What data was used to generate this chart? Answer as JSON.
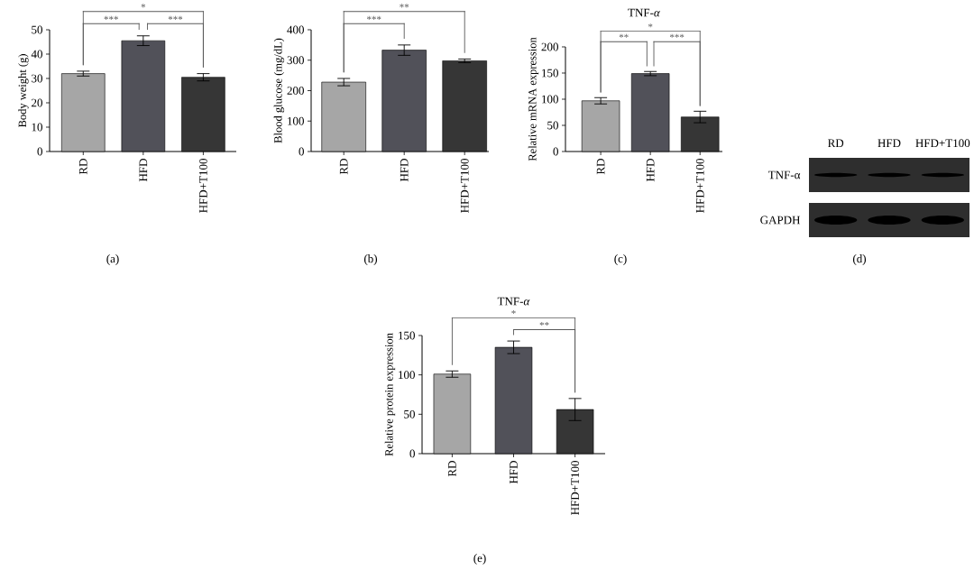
{
  "chart_data": [
    {
      "type": "bar",
      "ylabel": "Body weight (g)",
      "categories": [
        "RD",
        "HFD",
        "HFD+T100"
      ],
      "values": [
        32,
        45.5,
        30.5
      ],
      "errors": [
        1,
        2,
        1.5
      ],
      "colors": [
        "#a6a6a6",
        "#515159",
        "#363636"
      ],
      "ylim": [
        0,
        50
      ],
      "yticks": [
        0,
        10,
        20,
        30,
        40,
        50
      ],
      "annotations": [
        "***",
        "***",
        "*",
        "(a)"
      ]
    },
    {
      "type": "bar",
      "ylabel": "Blood glucose (mg/dL)",
      "categories": [
        "RD",
        "HFD",
        "HFD+T100"
      ],
      "values": [
        228,
        333,
        298
      ],
      "errors": [
        12,
        17,
        6
      ],
      "colors": [
        "#a6a6a6",
        "#515159",
        "#363636"
      ],
      "ylim": [
        0,
        400
      ],
      "yticks": [
        0,
        100,
        200,
        300,
        400
      ],
      "annotations": [
        "***",
        "**",
        "(b)"
      ]
    },
    {
      "type": "bar",
      "title": "TNF-*α*",
      "ylabel": "Relative mRNA expression",
      "categories": [
        "RD",
        "HFD",
        "HFD+T100"
      ],
      "values": [
        97,
        149,
        66
      ],
      "errors": [
        6,
        4,
        11
      ],
      "colors": [
        "#a6a6a6",
        "#515159",
        "#363636"
      ],
      "ylim": [
        0,
        200
      ],
      "yticks": [
        0,
        50,
        100,
        150,
        200
      ],
      "annotations": [
        "**",
        "***",
        "*",
        "(c)"
      ]
    },
    {
      "type": "other",
      "categories": [
        "RD",
        "HFD",
        "HFD+T100"
      ],
      "y_categories": [
        "TNF-α",
        "GAPDH"
      ],
      "annotations": [
        "(d)"
      ]
    },
    {
      "type": "bar",
      "title": "TNF-*α*",
      "ylabel": "Relative protein expression",
      "categories": [
        "RD",
        "HFD",
        "HFD+T100"
      ],
      "values": [
        101,
        135,
        56
      ],
      "errors": [
        4,
        8,
        14
      ],
      "colors": [
        "#a6a6a6",
        "#515159",
        "#363636"
      ],
      "ylim": [
        0,
        150
      ],
      "yticks": [
        0,
        50,
        100,
        150
      ],
      "annotations": [
        "**",
        "*",
        "(e)"
      ]
    }
  ]
}
